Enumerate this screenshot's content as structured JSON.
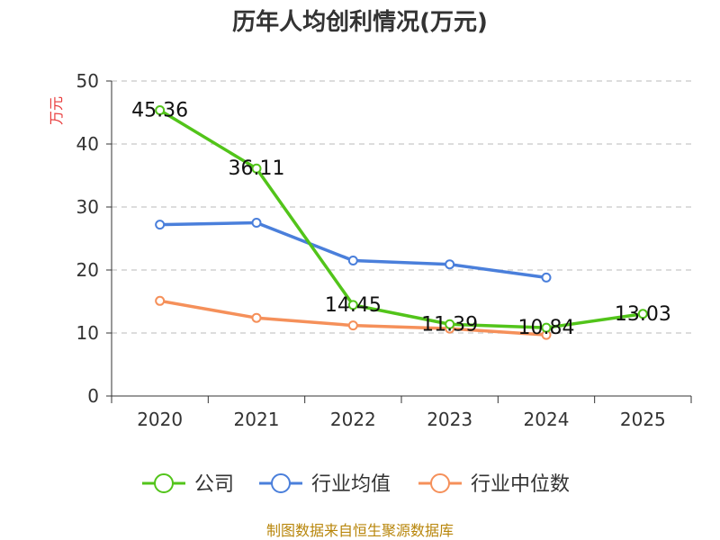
{
  "chart_data": {
    "type": "line",
    "title": "历年人均创利情况(万元)",
    "ylabel": "万元",
    "xlabel": "",
    "ylim": [
      0,
      50
    ],
    "y_ticks": [
      0,
      10,
      20,
      30,
      40,
      50
    ],
    "categories": [
      "2020",
      "2021",
      "2022",
      "2023",
      "2024",
      "2025"
    ],
    "grid": true,
    "legend_position": "bottom-center",
    "series": [
      {
        "name": "公司",
        "color": "#52c41a",
        "values": [
          45.36,
          36.11,
          14.45,
          11.39,
          10.84,
          13.03
        ],
        "data_labels": [
          "45.36",
          "36.11",
          "14.45",
          "11.39",
          "10.84",
          "13.03"
        ]
      },
      {
        "name": "行业均值",
        "color": "#4a7fdb",
        "values": [
          27.2,
          27.5,
          21.5,
          20.9,
          18.8,
          null
        ]
      },
      {
        "name": "行业中位数",
        "color": "#f5905a",
        "values": [
          15.1,
          12.4,
          11.2,
          10.7,
          9.7,
          null
        ]
      }
    ]
  },
  "source_text": "制图数据来自恒生聚源数据库"
}
